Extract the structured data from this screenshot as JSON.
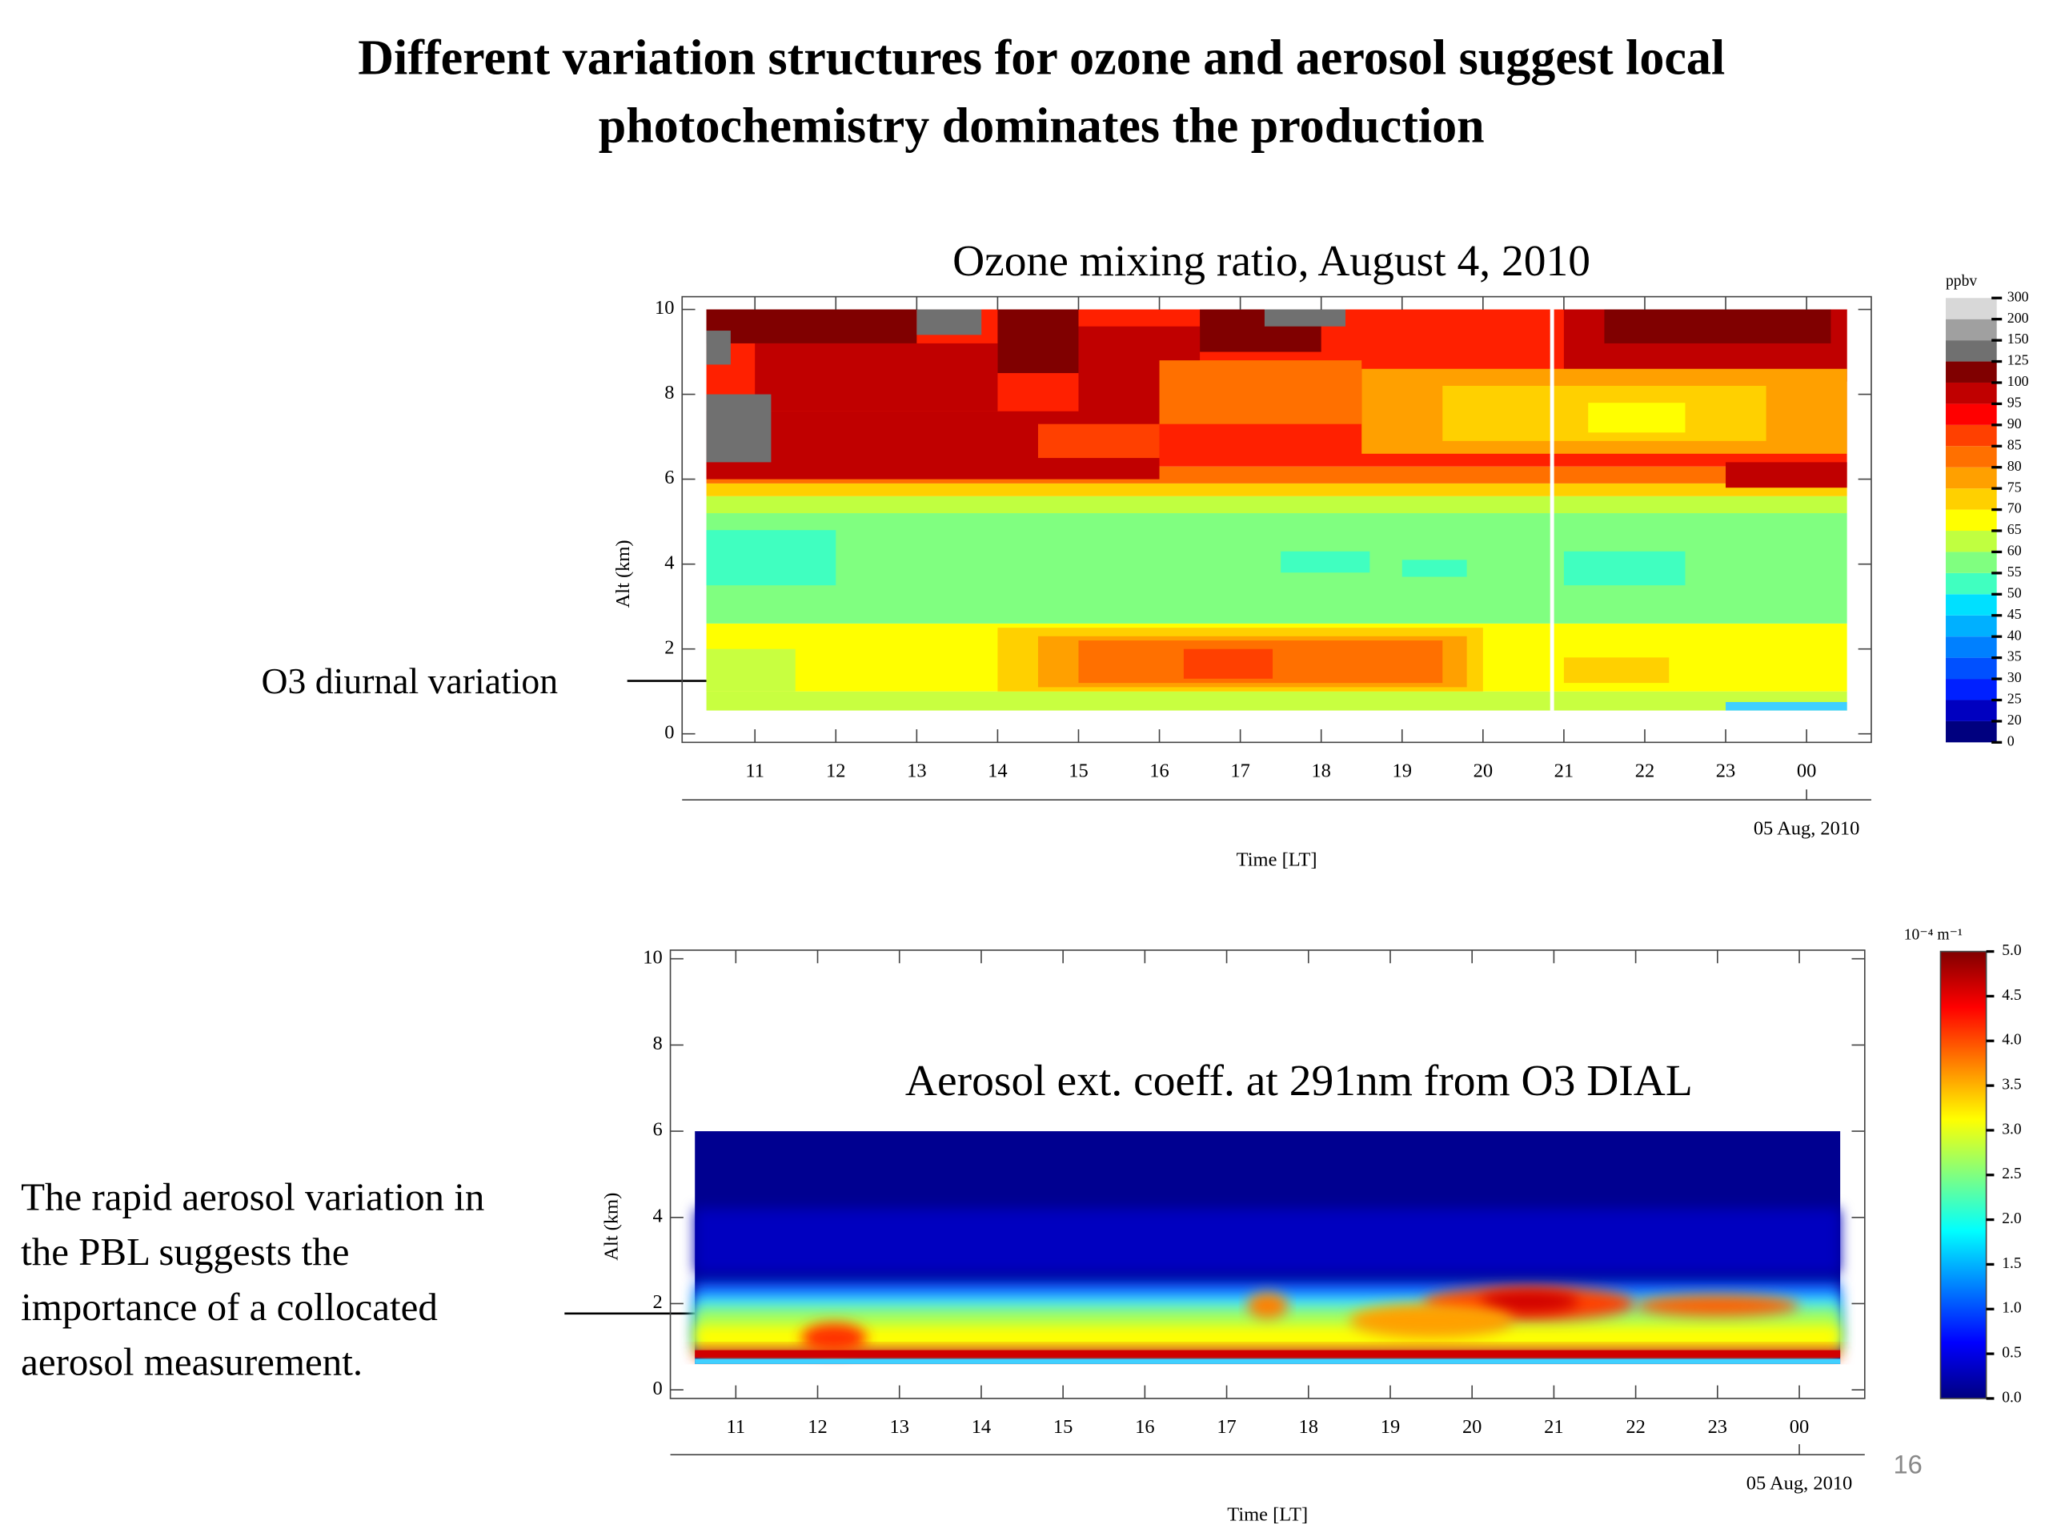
{
  "title": [
    "Different variation structures for ozone and aerosol suggest local",
    "photochemistry dominates the production"
  ],
  "annotations": {
    "ozone": "O3 diurnal variation",
    "aerosol": [
      "The rapid aerosol variation in",
      "the PBL suggests the",
      "importance of a collocated",
      "aerosol measurement."
    ]
  },
  "page_number": "16",
  "chart_data": [
    {
      "type": "heatmap",
      "title": "Ozone mixing ratio, August 4, 2010",
      "ylabel": "Alt (km)",
      "xlabel": "Time [LT]",
      "date_label": "05 Aug, 2010",
      "xlim": [
        10.1,
        24.8
      ],
      "xticks": [
        11,
        12,
        13,
        14,
        15,
        16,
        17,
        18,
        19,
        20,
        21,
        22,
        23,
        {
          "value": 24,
          "label": "00"
        }
      ],
      "ylim": [
        -0.2,
        10.3
      ],
      "yticks": [
        0,
        2,
        4,
        6,
        8,
        10
      ],
      "colorbar": {
        "label": "ppbv",
        "ticks": [
          0,
          20,
          25,
          30,
          35,
          40,
          45,
          50,
          55,
          60,
          65,
          70,
          75,
          80,
          85,
          90,
          95,
          100,
          125,
          150,
          200,
          300
        ],
        "colors": [
          "#00007f",
          "#0000c0",
          "#0020ff",
          "#0050ff",
          "#0080ff",
          "#00b0ff",
          "#00e0ff",
          "#40ffc0",
          "#80ff80",
          "#c0ff40",
          "#ffff00",
          "#ffd000",
          "#ffa000",
          "#ff7000",
          "#ff4000",
          "#ff0000",
          "#c00000",
          "#800000",
          "#707070",
          "#a0a0a0",
          "#d8d8d8"
        ]
      }
    },
    {
      "type": "heatmap",
      "title": "Aerosol ext. coeff. at 291nm from O3 DIAL",
      "ylabel": "Alt (km)",
      "xlabel": "Time [LT]",
      "date_label": "05 Aug, 2010",
      "xlim": [
        10.2,
        24.8
      ],
      "xticks": [
        11,
        12,
        13,
        14,
        15,
        16,
        17,
        18,
        19,
        20,
        21,
        22,
        23,
        {
          "value": 24,
          "label": "00"
        }
      ],
      "ylim": [
        -0.2,
        10.2
      ],
      "yticks": [
        0,
        2,
        4,
        6,
        8,
        10
      ],
      "colorbar": {
        "label": "10⁻⁴ m⁻¹",
        "ticks": [
          {
            "value": 0,
            "label": "0.0"
          },
          0.5,
          {
            "value": 1,
            "label": "1.0"
          },
          1.5,
          {
            "value": 2,
            "label": "2.0"
          },
          2.5,
          {
            "value": 3,
            "label": "3.0"
          },
          3.5,
          {
            "value": 4,
            "label": "4.0"
          },
          4.5,
          {
            "value": 5,
            "label": "5.0"
          }
        ],
        "colors": [
          "#00007f",
          "#0000ff",
          "#0080ff",
          "#00ffff",
          "#80ff80",
          "#ffff00",
          "#ff8000",
          "#ff0000",
          "#800000"
        ]
      }
    }
  ]
}
